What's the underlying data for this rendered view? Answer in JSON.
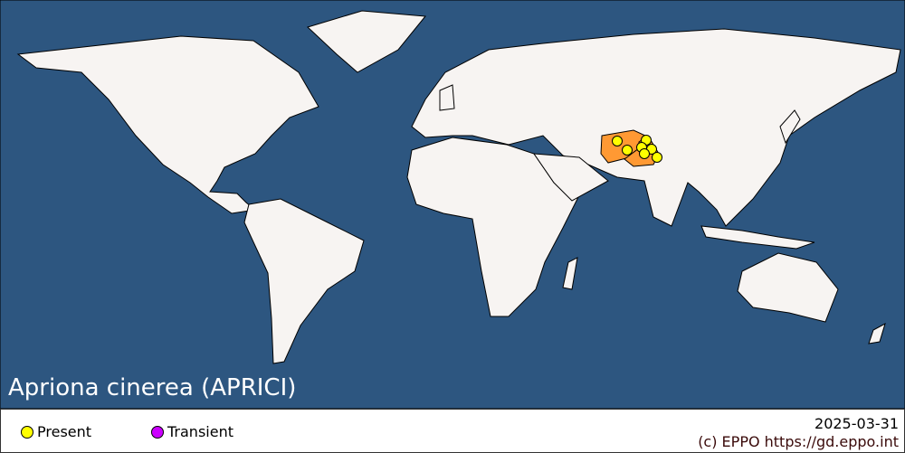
{
  "title": "Apriona cinerea (APRICI)",
  "legend": [
    {
      "label": "Present",
      "color": "#ffff00"
    },
    {
      "label": "Transient",
      "color": "#cc00ff"
    }
  ],
  "date": "2025-03-31",
  "copyright": "(c) EPPO https://gd.eppo.int",
  "colors": {
    "ocean": "#2d5680",
    "land": "#f7f4f2",
    "infested_country": "#ff9933",
    "border": "#000000"
  },
  "infested_countries": [
    "Afghanistan",
    "Pakistan"
  ]
}
